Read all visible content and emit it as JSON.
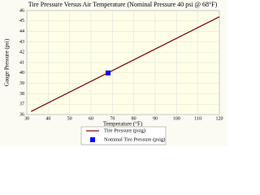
{
  "chart_data": {
    "type": "line",
    "title": "Tire Pressure Versus Air Temperature (Nominal Pressure 40 psi @ 68°F)",
    "x_label": "Temperature (°F)",
    "y_label": "Gauge Pressure (psi)",
    "series": [
      {
        "name": "Tire Pressure (psig)",
        "color": "#7a0000",
        "marker": "line",
        "x": [
          32,
          120
        ],
        "values": [
          36.3,
          45.4
        ]
      },
      {
        "name": "Nominal Tire Pressure (psig)",
        "color": "#0000ff",
        "marker": "square",
        "x": [
          68
        ],
        "values": [
          40
        ]
      }
    ],
    "xlim": [
      30,
      120
    ],
    "xticks": [
      30,
      40,
      50,
      60,
      70,
      80,
      90,
      100,
      110,
      120
    ],
    "ylim": [
      36,
      46
    ],
    "yticks": [
      36,
      37,
      38,
      39,
      40,
      41,
      42,
      43,
      44,
      45,
      46
    ],
    "grid": true
  }
}
